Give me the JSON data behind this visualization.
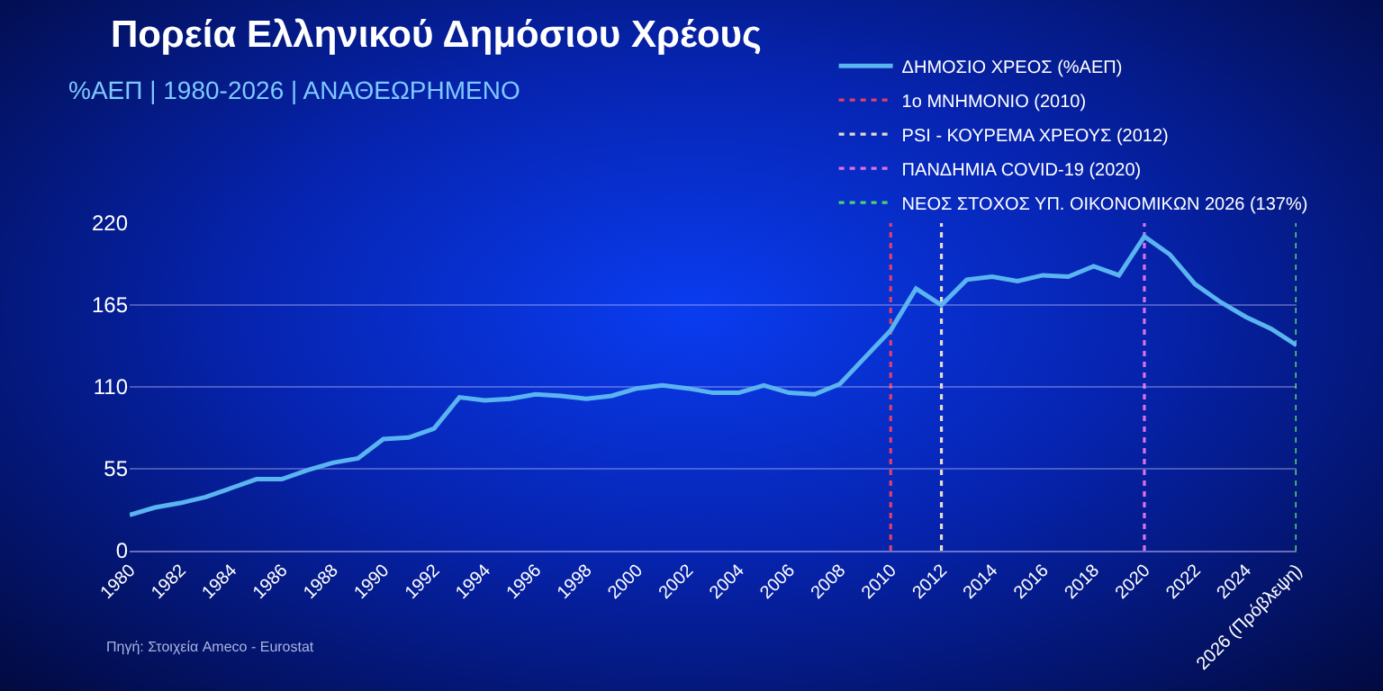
{
  "chart_data": {
    "type": "line",
    "title": "Πορεία Ελληνικού Δημόσιου Χρέους",
    "subtitle": "%ΑΕΠ | 1980-2026 | ΑΝΑΘΕΩΡΗΜΕΝΟ",
    "x": [
      1980,
      1981,
      1982,
      1983,
      1984,
      1985,
      1986,
      1987,
      1988,
      1989,
      1990,
      1991,
      1992,
      1993,
      1994,
      1995,
      1996,
      1997,
      1998,
      1999,
      2000,
      2001,
      2002,
      2003,
      2004,
      2005,
      2006,
      2007,
      2008,
      2009,
      2010,
      2011,
      2012,
      2013,
      2014,
      2015,
      2016,
      2017,
      2018,
      2019,
      2020,
      2021,
      2022,
      2023,
      2024,
      2025,
      2026
    ],
    "series": [
      {
        "name": "ΔΗΜΟΣΙΟ ΧΡΕΟΣ (%ΑΕΠ)",
        "color": "#5ab4f0",
        "values": [
          24,
          29,
          32,
          36,
          42,
          48,
          48,
          54,
          59,
          62,
          75,
          76,
          82,
          103,
          101,
          102,
          105,
          104,
          102,
          104,
          109,
          111,
          109,
          106,
          106,
          111,
          106,
          105,
          112,
          130,
          148,
          176,
          165,
          182,
          184,
          181,
          185,
          184,
          191,
          185,
          211,
          199,
          179,
          167,
          157,
          149,
          138
        ]
      }
    ],
    "xlim": [
      1980,
      2026
    ],
    "xticks": [
      1980,
      1982,
      1984,
      1986,
      1988,
      1990,
      1992,
      1994,
      1996,
      1998,
      2000,
      2002,
      2004,
      2006,
      2008,
      2010,
      2012,
      2014,
      2016,
      2018,
      2020,
      2022,
      2024,
      {
        "value": 2026,
        "label": "2026 (Πρόβλεψη)"
      }
    ],
    "ylim": [
      0,
      220
    ],
    "yticks": [
      0,
      55,
      110,
      165,
      220
    ],
    "ref_lines": [
      {
        "axis": "x",
        "value": 2010,
        "label": "1ο ΜΝΗΜΟΝΙΟ (2010)",
        "color": "#e0406a",
        "line_style": "dotted"
      },
      {
        "axis": "x",
        "value": 2012,
        "label": "PSI - ΚΟΥΡΕΜΑ ΧΡΕΟΥΣ (2012)",
        "color": "#e8dcc8",
        "line_style": "dotted"
      },
      {
        "axis": "x",
        "value": 2020,
        "label": "ΠΑΝΔΗΜΙΑ COVID-19 (2020)",
        "color": "#e070e8",
        "line_style": "dotted"
      },
      {
        "axis": "x",
        "value": 2026,
        "label": "ΝΕΟΣ ΣΤΟΧΟΣ ΥΠ. ΟΙΚΟΝΟΜΙΚΩΝ 2026 (137%)",
        "color": "#50d070",
        "line_style": "dotted"
      }
    ],
    "annotations": [
      "Πηγή: Στοιχεία Ameco - Eurostat"
    ],
    "grid": "y",
    "legend": "top right",
    "marker": "none",
    "line_style": "solid"
  }
}
